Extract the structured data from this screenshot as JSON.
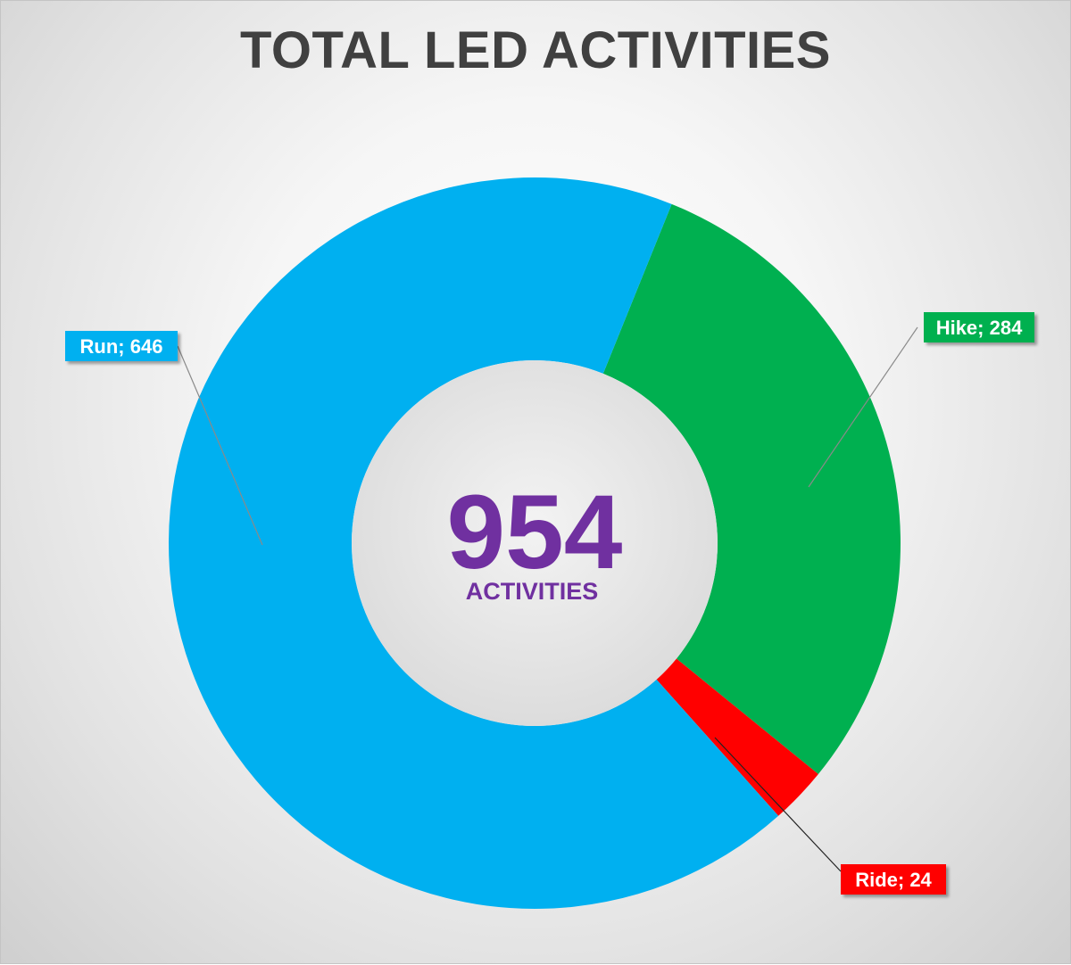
{
  "chart_data": {
    "type": "pie",
    "title": "TOTAL LED ACTIVITIES",
    "center": {
      "value": "954",
      "label": "ACTIVITIES"
    },
    "categories": [
      "Hike",
      "Ride",
      "Run"
    ],
    "values": [
      284,
      24,
      646
    ],
    "data_labels": [
      "Hike; 284",
      "Ride; 24",
      "Run; 646"
    ],
    "colors": [
      "#00b050",
      "#ff0000",
      "#00b0f0"
    ],
    "center_color": "#7030a0",
    "donut": true,
    "legend": "none"
  }
}
